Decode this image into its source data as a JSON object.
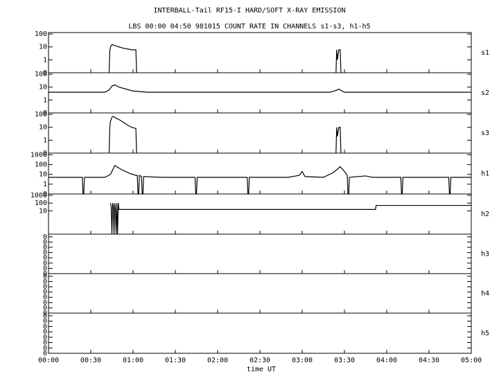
{
  "title": "INTERBALL-Tail RF15-I HARD/SOFT X-RAY EMISSION",
  "subtitle": "LBS 00:00 04:50 981015  COUNT RATE IN CHANNELS s1-s3, h1-h5",
  "x_axis": {
    "label": "time UT",
    "xlim": [
      0,
      300
    ],
    "xticks": [
      {
        "value": 0,
        "label": "00:00"
      },
      {
        "value": 30,
        "label": "00:30"
      },
      {
        "value": 60,
        "label": "01:00"
      },
      {
        "value": 90,
        "label": "01:30"
      },
      {
        "value": 120,
        "label": "02:00"
      },
      {
        "value": 150,
        "label": "02:30"
      },
      {
        "value": 180,
        "label": "03:00"
      },
      {
        "value": 210,
        "label": "03:30"
      },
      {
        "value": 240,
        "label": "04:00"
      },
      {
        "value": 270,
        "label": "04:30"
      },
      {
        "value": 300,
        "label": "05:00"
      }
    ]
  },
  "chart_data": [
    {
      "type": "line",
      "label": "s1",
      "log": true,
      "color": "#000000",
      "ylim": [
        0.1,
        130
      ],
      "yticks": [
        {
          "value": 0.1,
          "label": "0"
        },
        1,
        10,
        100
      ],
      "x": [
        43,
        43.5,
        44,
        45,
        46,
        48,
        50,
        53,
        56,
        59,
        62,
        62.5,
        120,
        204,
        204.5,
        205,
        206,
        207,
        207.5
      ],
      "values": [
        0.1,
        5,
        10,
        15,
        14,
        12,
        10,
        8,
        7,
        6,
        6,
        0.1,
        null,
        0.1,
        6,
        1,
        6,
        6,
        0.1
      ]
    },
    {
      "type": "line",
      "label": "s2",
      "log": true,
      "color": "#000000",
      "ylim": [
        0.1,
        130
      ],
      "yticks": [
        {
          "value": 0.1,
          "label": "0"
        },
        1,
        10,
        100
      ],
      "x": [
        0,
        10,
        20,
        30,
        40,
        43,
        45,
        47,
        50,
        55,
        60,
        70,
        90,
        120,
        150,
        180,
        200,
        205,
        206,
        210,
        240,
        270,
        300
      ],
      "values": [
        4,
        4,
        4,
        4,
        4,
        6,
        12,
        15,
        10,
        7,
        5,
        4,
        4,
        4,
        4,
        4,
        4,
        6,
        7,
        4,
        4,
        4,
        4
      ]
    },
    {
      "type": "line",
      "label": "s3",
      "log": true,
      "color": "#000000",
      "ylim": [
        0.1,
        130
      ],
      "yticks": [
        {
          "value": 0.1,
          "label": "0"
        },
        1,
        10,
        100
      ],
      "x": [
        43,
        43.5,
        44,
        45,
        46,
        48,
        50,
        53,
        56,
        59,
        62,
        62.5,
        120,
        204,
        204.5,
        205,
        206,
        207,
        207.5
      ],
      "values": [
        0.1,
        10,
        30,
        60,
        70,
        50,
        40,
        25,
        15,
        10,
        8,
        0.1,
        null,
        0.1,
        10,
        2,
        10,
        10,
        0.1
      ]
    },
    {
      "type": "line",
      "label": "h1",
      "log": true,
      "color": "#000000",
      "ylim": [
        0.1,
        1500
      ],
      "yticks": [
        {
          "value": 0.1,
          "label": "0"
        },
        1,
        10,
        100,
        1000
      ],
      "x": [
        0,
        24,
        24.5,
        25,
        25.5,
        40,
        44,
        47,
        52,
        58,
        62,
        63,
        63.5,
        64,
        64.5,
        66,
        66.5,
        67,
        67.5,
        80,
        104,
        104.5,
        105,
        105.5,
        130,
        141,
        141.5,
        142,
        142.5,
        170,
        178,
        180,
        182,
        195,
        202,
        207,
        210,
        212,
        212.5,
        213,
        213.5,
        225,
        230,
        250,
        250.5,
        251,
        251.5,
        284,
        284.5,
        285,
        285.5,
        300
      ],
      "values": [
        5,
        5,
        0.1,
        0.1,
        5,
        5,
        10,
        80,
        30,
        12,
        8,
        8,
        0.1,
        0.1,
        8,
        6,
        0.1,
        0.1,
        6,
        5,
        5,
        0.1,
        0.1,
        5,
        5,
        5,
        0.1,
        0.1,
        5,
        5,
        8,
        20,
        6,
        5,
        15,
        60,
        20,
        8,
        0.1,
        0.1,
        5,
        7,
        5,
        5,
        0.1,
        0.1,
        5,
        5,
        0.1,
        0.1,
        5,
        5
      ]
    },
    {
      "type": "line",
      "label": "h2",
      "log": true,
      "color": "#000000",
      "ylim": [
        0.01,
        1500
      ],
      "yticks": [
        10,
        100,
        1000
      ],
      "x": [
        44,
        44.5,
        45,
        45.5,
        46,
        46.5,
        47,
        47.5,
        48,
        48.5,
        49,
        49.5,
        50,
        232,
        232.5,
        300
      ],
      "values": [
        100,
        30,
        0.01,
        100,
        50,
        0.01,
        100,
        20,
        0.01,
        100,
        0.01,
        100,
        15,
        15,
        50,
        50
      ]
    },
    {
      "type": "line",
      "label": "h3",
      "log": false,
      "color": "#000000",
      "ylim": [
        0,
        0.15
      ],
      "yticks": [
        {
          "value": 0,
          "label": "0"
        },
        {
          "value": 0.02,
          "label": "0"
        },
        {
          "value": 0.04,
          "label": "0"
        },
        {
          "value": 0.06,
          "label": "0"
        },
        {
          "value": 0.08,
          "label": "0"
        },
        {
          "value": 0.1,
          "label": "0"
        },
        {
          "value": 0.12,
          "label": "0"
        },
        {
          "value": 0.14,
          "label": "0"
        }
      ]
    },
    {
      "type": "line",
      "label": "h4",
      "log": false,
      "color": "#000000",
      "ylim": [
        0,
        0.15
      ],
      "yticks": [
        {
          "value": 0,
          "label": "0"
        },
        {
          "value": 0.02,
          "label": "0"
        },
        {
          "value": 0.04,
          "label": "0"
        },
        {
          "value": 0.06,
          "label": "0"
        },
        {
          "value": 0.08,
          "label": "0"
        },
        {
          "value": 0.1,
          "label": "0"
        },
        {
          "value": 0.12,
          "label": "0"
        },
        {
          "value": 0.14,
          "label": "0"
        }
      ]
    },
    {
      "type": "line",
      "label": "h5",
      "log": false,
      "color": "#000000",
      "ylim": [
        0,
        0.15
      ],
      "yticks": [
        {
          "value": 0,
          "label": "0"
        },
        {
          "value": 0.02,
          "label": "0"
        },
        {
          "value": 0.04,
          "label": "0"
        },
        {
          "value": 0.06,
          "label": "0"
        },
        {
          "value": 0.08,
          "label": "0"
        },
        {
          "value": 0.1,
          "label": "0"
        },
        {
          "value": 0.12,
          "label": "0"
        },
        {
          "value": 0.14,
          "label": "0"
        }
      ]
    }
  ]
}
